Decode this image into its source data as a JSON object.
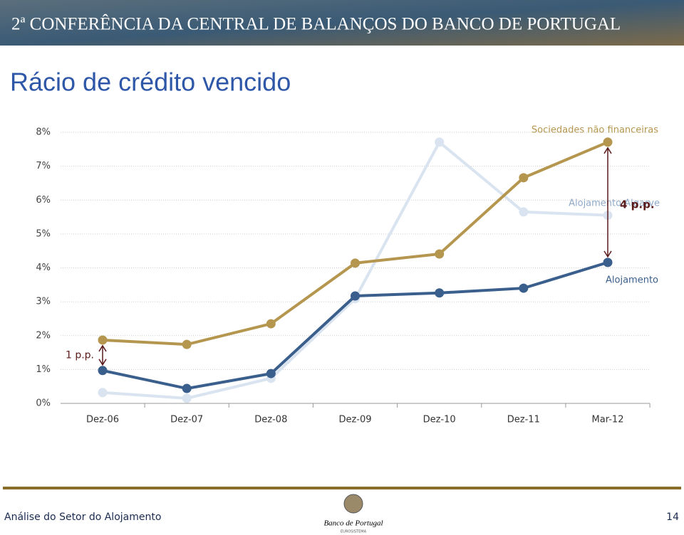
{
  "header": {
    "banner": "2ª CONFERÊNCIA DA CENTRAL DE BALANÇOS DO BANCO DE PORTUGAL"
  },
  "chart_data": {
    "type": "line",
    "title": "Rácio de crédito vencido",
    "categories": [
      "Dez-06",
      "Dez-07",
      "Dez-08",
      "Dez-09",
      "Dez-10",
      "Dez-11",
      "Mar-12"
    ],
    "series": [
      {
        "name": "Alojamento Algarve",
        "color": "#d9e4f0",
        "label_color": "#8fa9c8",
        "values": [
          0.32,
          0.15,
          0.74,
          3.09,
          7.71,
          5.65,
          5.55
        ]
      },
      {
        "name": "Sociedades não financeiras",
        "color": "#b5964f",
        "label_color": "#b5964f",
        "values": [
          1.87,
          1.74,
          2.35,
          4.14,
          4.41,
          6.66,
          7.71
        ]
      },
      {
        "name": "Alojamento",
        "color": "#3a5f8c",
        "label_color": "#3a5f8c",
        "values": [
          0.97,
          0.44,
          0.88,
          3.17,
          3.26,
          3.4,
          4.16
        ]
      }
    ],
    "ylim": [
      0,
      8
    ],
    "yticks": [
      {
        "value": 0,
        "label": "0%"
      },
      {
        "value": 1,
        "label": "1%"
      },
      {
        "value": 2,
        "label": "2%"
      },
      {
        "value": 3,
        "label": "3%"
      },
      {
        "value": 4,
        "label": "4%"
      },
      {
        "value": 5,
        "label": "5%"
      },
      {
        "value": 6,
        "label": "6%"
      },
      {
        "value": 7,
        "label": "7%"
      },
      {
        "value": 8,
        "label": "8%"
      }
    ],
    "grid": true,
    "annotations": [
      "1 p.p.",
      "4 p.p."
    ]
  },
  "footer": {
    "left": "Análise do Setor do Alojamento",
    "logo": "Banco de Portugal",
    "logo_sub": "EUROSISTEMA",
    "page": "14"
  }
}
